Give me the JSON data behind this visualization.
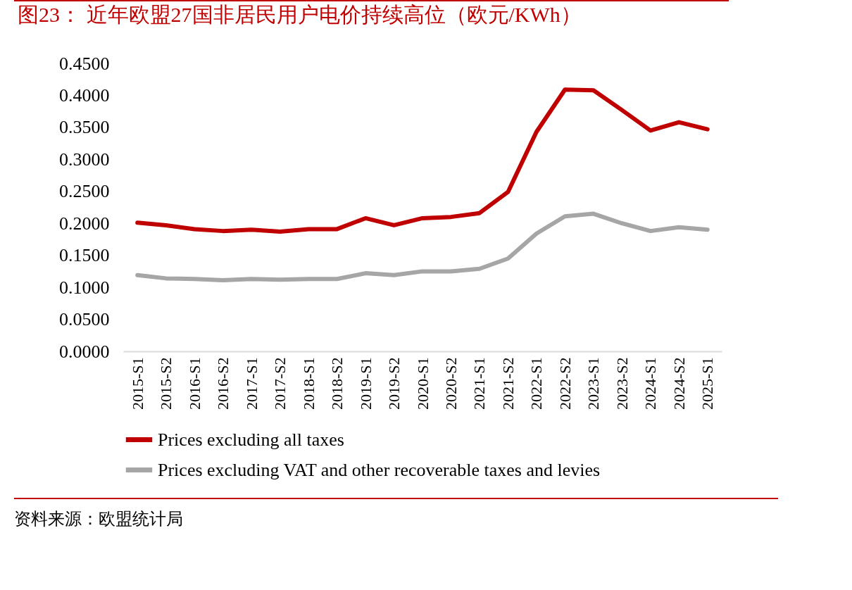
{
  "chart_data": {
    "type": "line",
    "title": "图23：  近年欧盟27国非居民用户电价持续高位（欧元/KWh）",
    "categories": [
      "2015-S1",
      "2015-S2",
      "2016-S1",
      "2016-S2",
      "2017-S1",
      "2017-S2",
      "2018-S1",
      "2018-S2",
      "2019-S1",
      "2019-S2",
      "2020-S1",
      "2020-S2",
      "2021-S1",
      "2021-S2",
      "2022-S1",
      "2022-S2",
      "2023-S1",
      "2023-S2",
      "2024-S1",
      "2024-S2",
      "2025-S1"
    ],
    "series": [
      {
        "name": "Prices excluding all taxes",
        "color": "#c00000",
        "values": [
          0.201,
          0.197,
          0.191,
          0.188,
          0.19,
          0.187,
          0.191,
          0.191,
          0.208,
          0.197,
          0.208,
          0.21,
          0.216,
          0.249,
          0.343,
          0.409,
          0.408,
          0.377,
          0.345,
          0.358,
          0.347
        ]
      },
      {
        "name": "Prices excluding VAT and other recoverable taxes and levies",
        "color": "#a6a6a6",
        "values": [
          0.119,
          0.114,
          0.113,
          0.111,
          0.113,
          0.112,
          0.113,
          0.113,
          0.122,
          0.119,
          0.125,
          0.125,
          0.129,
          0.145,
          0.184,
          0.211,
          0.215,
          0.2,
          0.188,
          0.194,
          0.19
        ]
      }
    ],
    "ylim": [
      0,
      0.45
    ],
    "yticks": [
      {
        "value": 0,
        "label": "0.0000"
      },
      {
        "value": 0.05,
        "label": "0.0500"
      },
      {
        "value": 0.1,
        "label": "0.1000"
      },
      {
        "value": 0.15,
        "label": "0.1500"
      },
      {
        "value": 0.2,
        "label": "0.2000"
      },
      {
        "value": 0.25,
        "label": "0.2500"
      },
      {
        "value": 0.3,
        "label": "0.3000"
      },
      {
        "value": 0.35,
        "label": "0.3500"
      },
      {
        "value": 0.4,
        "label": "0.4000"
      },
      {
        "value": 0.45,
        "label": "0.4500"
      }
    ],
    "grid": false,
    "legend": "bottom",
    "marker": "none",
    "line_style": "solid",
    "annotations": [
      "资料来源：欧盟统计局"
    ]
  }
}
